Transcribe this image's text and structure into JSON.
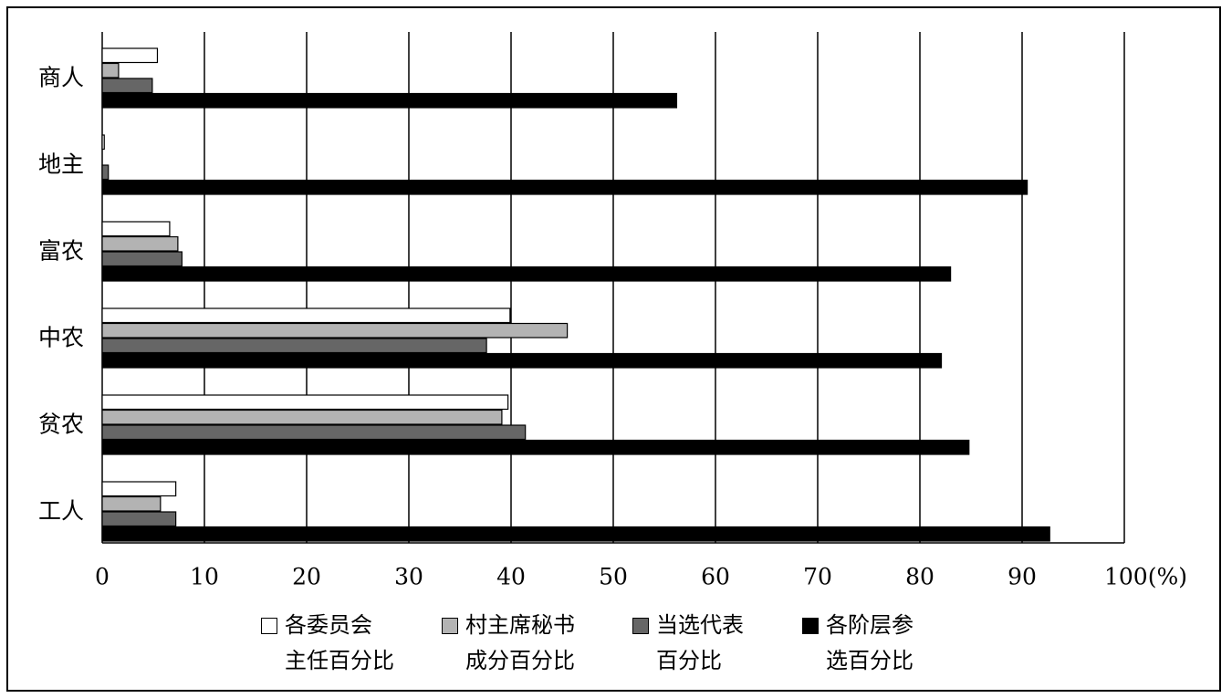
{
  "chart_data": {
    "type": "hbar",
    "categories": [
      "商人",
      "地主",
      "富农",
      "中农",
      "贫农",
      "工人"
    ],
    "series": [
      {
        "name": "各委员会\n主任百分比",
        "color": "#ffffff",
        "values": [
          5.4,
          0.2,
          6.6,
          39.9,
          39.7,
          7.2
        ]
      },
      {
        "name": "村主席秘书\n成分百分比",
        "color": "#b3b3b3",
        "values": [
          1.6,
          0,
          7.4,
          45.5,
          39.1,
          5.7
        ]
      },
      {
        "name": "当选代表\n百分比",
        "color": "#666666",
        "values": [
          4.9,
          0.6,
          7.8,
          37.6,
          41.4,
          7.2
        ]
      },
      {
        "name": "各阶层参\n选百分比",
        "color": "#000000",
        "values": [
          56.2,
          90.5,
          83.0,
          82.1,
          84.8,
          92.7
        ]
      }
    ],
    "xlim": [
      0,
      100
    ],
    "xticks": [
      0,
      10,
      20,
      30,
      40,
      50,
      60,
      70,
      80,
      90,
      {
        "value": 100,
        "label": "100(%)"
      }
    ],
    "grid": true
  }
}
